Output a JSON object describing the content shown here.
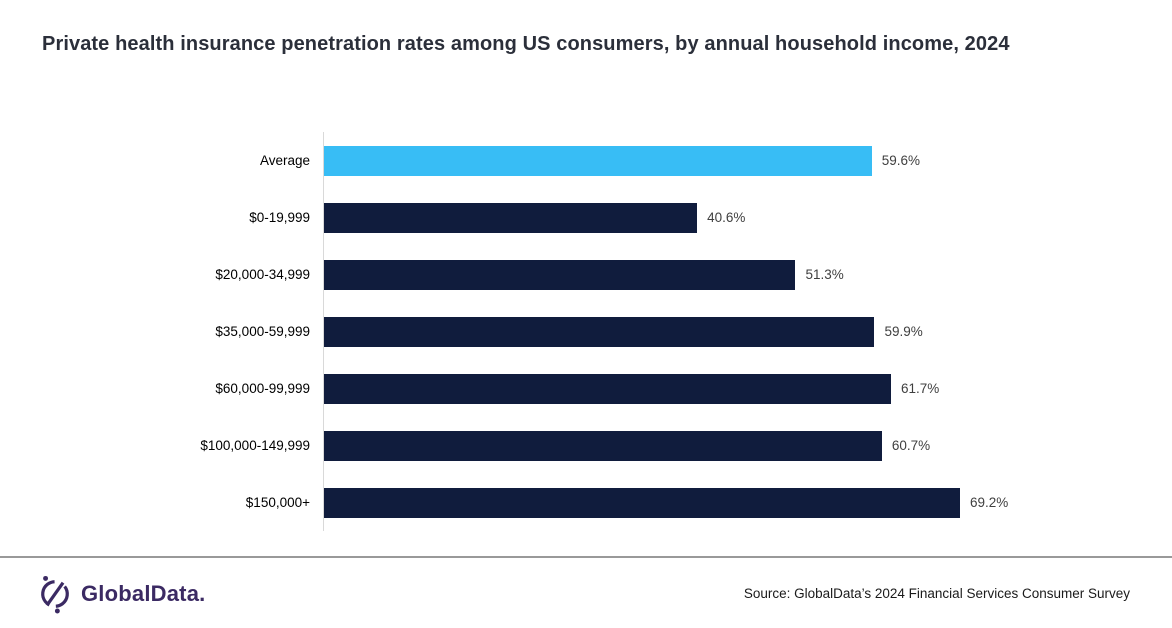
{
  "header": {
    "title": "Private health insurance penetration rates among US consumers, by annual household income, 2024",
    "title_color": "#2b2f3a"
  },
  "chart_data": {
    "type": "bar",
    "orientation": "horizontal",
    "title": "Private health insurance penetration rates among US consumers, by annual household income, 2024",
    "categories": [
      "Average",
      "$0-19,999",
      "$20,000-34,999",
      "$35,000-59,999",
      "$60,000-99,999",
      "$100,000-149,999",
      "$150,000+"
    ],
    "values": [
      59.6,
      40.6,
      51.3,
      59.9,
      61.7,
      60.7,
      69.2
    ],
    "value_labels": [
      "59.6%",
      "40.6%",
      "51.3%",
      "59.9%",
      "61.7%",
      "60.7%",
      "69.2%"
    ],
    "bar_colors": [
      "#38bdf5",
      "#101c3d",
      "#101c3d",
      "#101c3d",
      "#101c3d",
      "#101c3d",
      "#101c3d"
    ],
    "highlight_color": "#38bdf5",
    "default_bar_color": "#101c3d",
    "xlabel": "",
    "ylabel": "",
    "xlim": [
      0,
      100
    ],
    "grid": false,
    "legend": false,
    "data_labels": true,
    "axis_line_color": "#d9d9d9"
  },
  "footer": {
    "divider_color": "#999999",
    "logo_text": "GlobalData.",
    "logo_color": "#3b2a63",
    "source": "Source: GlobalData’s 2024 Financial Services Consumer Survey"
  }
}
